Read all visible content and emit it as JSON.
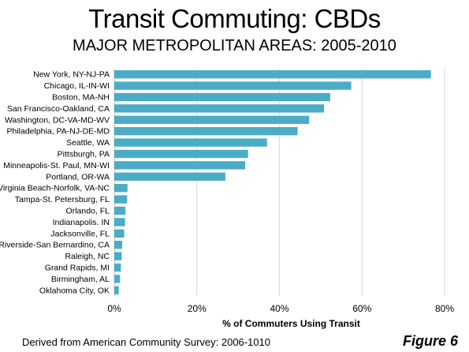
{
  "title": "Transit Commuting: CBDs",
  "subtitle": "MAJOR METROPOLITAN AREAS: 2005-2010",
  "source": "Derived from American Community Survey: 2006-1010",
  "figure_label": "Figure 6",
  "chart_data": {
    "type": "bar",
    "orientation": "horizontal",
    "title": "Transit Commuting: CBDs",
    "subtitle": "MAJOR METROPOLITAN AREAS: 2005-2010",
    "xlabel": "% of Commuters Using Transit",
    "ylabel": "",
    "xlim": [
      0,
      80
    ],
    "xticks": [
      "0%",
      "20%",
      "40%",
      "60%",
      "80%"
    ],
    "xtick_values": [
      0,
      20,
      40,
      60,
      80
    ],
    "grid": true,
    "bar_color": "#4bacc6",
    "categories": [
      "New York, NY-NJ-PA",
      "Chicago, IL-IN-WI",
      "Boston, MA-NH",
      "San Francisco-Oakland, CA",
      "Washington, DC-VA-MD-WV",
      "Philadelphia, PA-NJ-DE-MD",
      "Seattle, WA",
      "Pittsburgh, PA",
      "Minneapolis-St. Paul, MN-WI",
      "Portland, OR-WA",
      "Virginia Beach-Norfolk, VA-NC",
      "Tampa-St. Petersburg, FL",
      "Orlando, FL",
      "Indianapolis. IN",
      "Jacksonville, FL",
      "Riverside-San Bernardino, CA",
      "Raleigh, NC",
      "Grand Rapids, MI",
      "Birmingham, AL",
      "Oklahoma City, OK"
    ],
    "values": [
      76.7,
      57.4,
      52.3,
      50.8,
      47.2,
      44.4,
      37.0,
      32.4,
      31.7,
      26.9,
      3.2,
      3.1,
      2.7,
      2.6,
      2.4,
      1.9,
      1.8,
      1.6,
      1.4,
      1.1
    ]
  }
}
